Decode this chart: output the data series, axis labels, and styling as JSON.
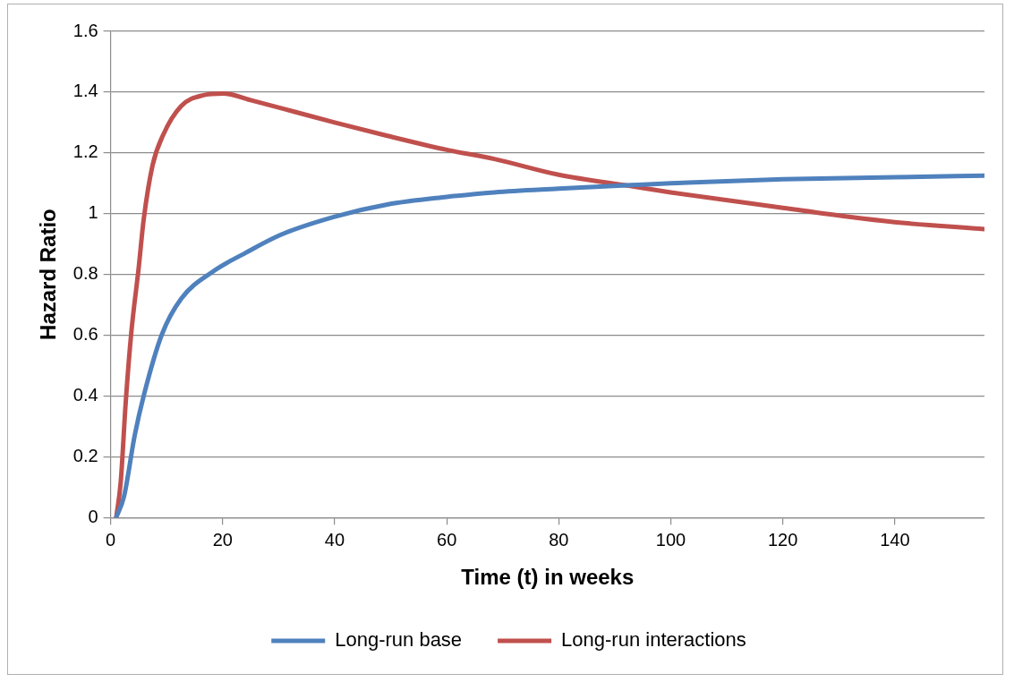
{
  "chart_data": {
    "type": "line",
    "xlabel": "Time (t) in weeks",
    "ylabel": "Hazard Ratio",
    "xlim": [
      0,
      156
    ],
    "xticks": [
      0,
      20,
      40,
      60,
      80,
      100,
      120,
      140
    ],
    "ylim": [
      0,
      1.6
    ],
    "yticks": [
      0,
      0.2,
      0.4,
      0.6,
      0.8,
      1,
      1.2,
      1.4,
      1.6
    ],
    "grid": "y",
    "legend": "bottom",
    "marker": "none",
    "line_style": "solid",
    "series": [
      {
        "name": "Long-run base",
        "color": "#4f81bd",
        "x": [
          1,
          2.4,
          4.3,
          5.9,
          9.1,
          12.6,
          18.3,
          24,
          30.3,
          40,
          49.4,
          60,
          68.5,
          80,
          93,
          100,
          120,
          140,
          156
        ],
        "values": [
          0,
          0.07,
          0.27,
          0.4,
          0.6,
          0.72,
          0.81,
          0.87,
          0.93,
          0.99,
          1.03,
          1.055,
          1.07,
          1.082,
          1.094,
          1.1,
          1.113,
          1.12,
          1.125
        ]
      },
      {
        "name": "Long-run interactions",
        "color": "#c0504d",
        "x": [
          1,
          1.8,
          2.7,
          3.7,
          5,
          5.9,
          7.5,
          9.4,
          12.6,
          16.4,
          20.2,
          25.3,
          32.9,
          40,
          49.4,
          60,
          68.5,
          80,
          93,
          100,
          120,
          131.5,
          140,
          156
        ],
        "values": [
          0,
          0.116,
          0.38,
          0.61,
          0.82,
          0.98,
          1.16,
          1.26,
          1.354,
          1.389,
          1.395,
          1.372,
          1.335,
          1.3,
          1.256,
          1.21,
          1.18,
          1.128,
          1.09,
          1.07,
          1.019,
          0.99,
          0.972,
          0.949
        ]
      }
    ]
  }
}
